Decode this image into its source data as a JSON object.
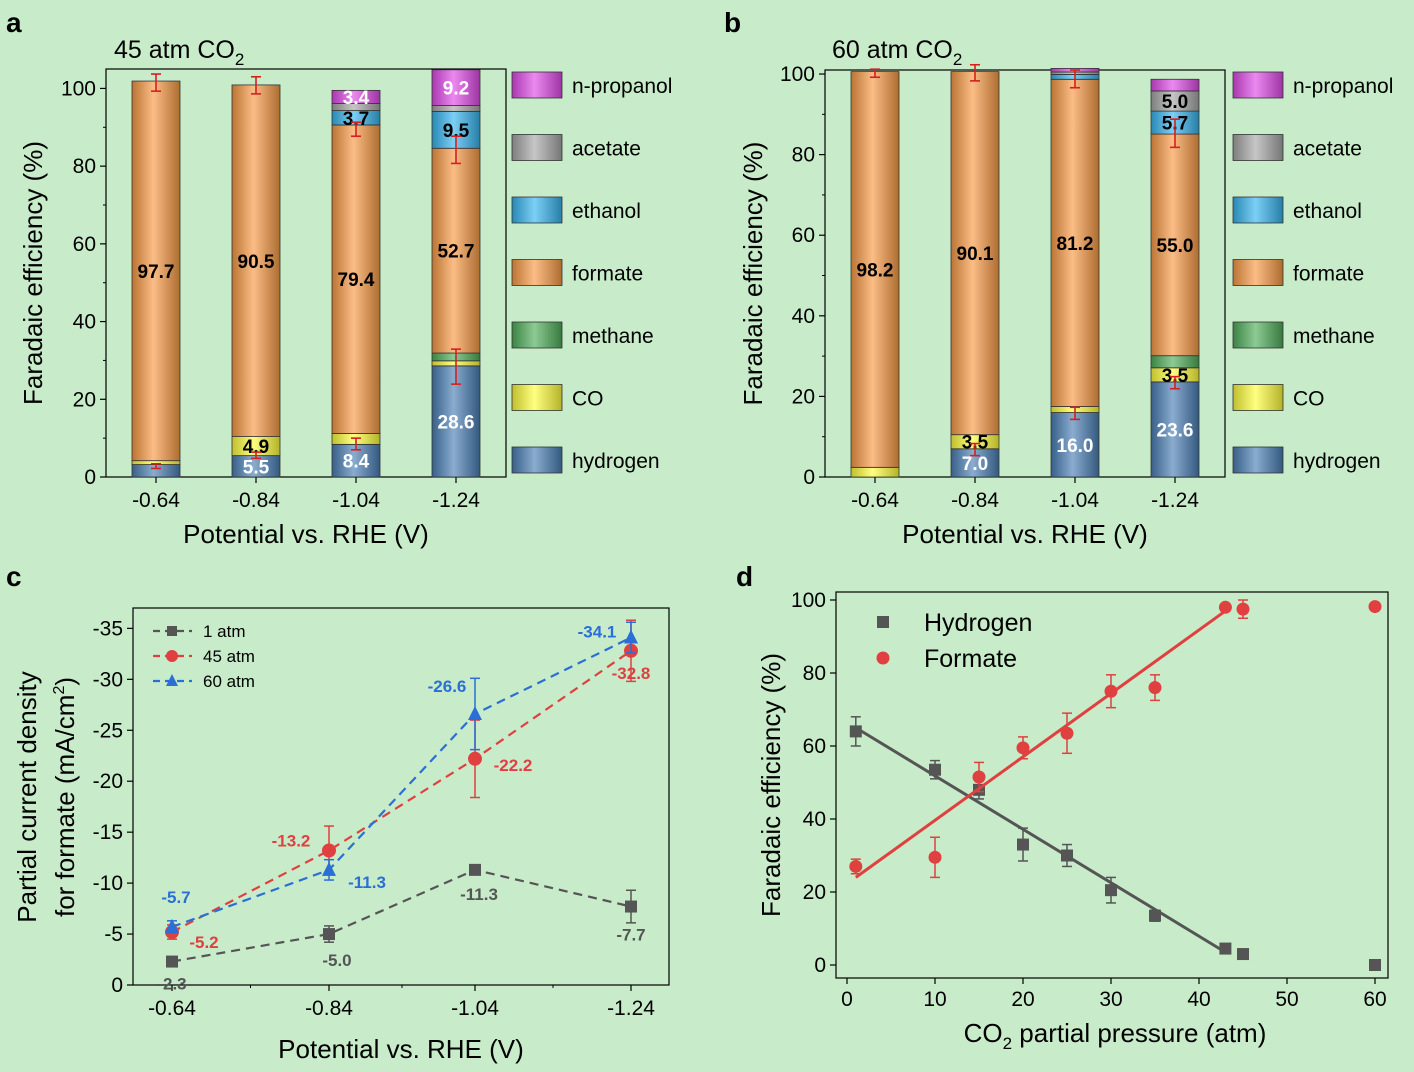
{
  "panels": {
    "a": "a",
    "b": "b",
    "c": "c",
    "d": "d"
  },
  "colors": {
    "hydrogen": "#4a7fb5",
    "CO": "#ffff3c",
    "methane": "#4fae5a",
    "formate": "#f99a45",
    "ethanol": "#36b5f0",
    "acetate": "#a8a8a8",
    "n-propanol": "#e04ae8",
    "err_red": "#d62020",
    "s1": "#555555",
    "s45": "#e04040",
    "s60": "#2b6fd6"
  },
  "chart_data": [
    {
      "id": "a",
      "type": "bar",
      "title": "45 atm CO",
      "title_sub": "2",
      "xlabel": "Potential vs. RHE (V)",
      "ylabel": "Faradaic efficiency (%)",
      "ylim": [
        0,
        105
      ],
      "yticks": [
        "0",
        "20",
        "40",
        "60",
        "80",
        "100"
      ],
      "categories": [
        "-0.64",
        "-0.84",
        "-1.04",
        "-1.24"
      ],
      "series": [
        {
          "name": "hydrogen",
          "values": [
            3.2,
            5.5,
            8.4,
            28.6
          ]
        },
        {
          "name": "CO",
          "values": [
            1.0,
            4.9,
            2.8,
            1.3
          ]
        },
        {
          "name": "methane",
          "values": [
            0.0,
            0.0,
            0.0,
            2.0
          ]
        },
        {
          "name": "formate",
          "values": [
            97.7,
            90.5,
            79.4,
            52.7
          ]
        },
        {
          "name": "ethanol",
          "values": [
            0.0,
            0.0,
            3.7,
            9.5
          ]
        },
        {
          "name": "acetate",
          "values": [
            0.0,
            0.0,
            1.8,
            1.5
          ]
        },
        {
          "name": "n-propanol",
          "values": [
            0.0,
            0.0,
            3.4,
            9.2
          ]
        }
      ],
      "labels": [
        {
          "bar": 0,
          "series": "formate",
          "text": "97.7",
          "color": "#000000"
        },
        {
          "bar": 1,
          "series": "hydrogen",
          "text": "5.5",
          "color": "#ffffff"
        },
        {
          "bar": 1,
          "series": "CO",
          "text": "4.9",
          "color": "#000000"
        },
        {
          "bar": 1,
          "series": "formate",
          "text": "90.5",
          "color": "#000000"
        },
        {
          "bar": 2,
          "series": "hydrogen",
          "text": "8.4",
          "color": "#ffffff"
        },
        {
          "bar": 2,
          "series": "formate",
          "text": "79.4",
          "color": "#000000"
        },
        {
          "bar": 2,
          "series": "ethanol",
          "text": "3.7",
          "color": "#000000"
        },
        {
          "bar": 2,
          "series": "n-propanol",
          "text": "3.4",
          "color": "#ffffff"
        },
        {
          "bar": 3,
          "series": "hydrogen",
          "text": "28.6",
          "color": "#ffffff"
        },
        {
          "bar": 3,
          "series": "formate",
          "text": "52.7",
          "color": "#000000"
        },
        {
          "bar": 3,
          "series": "ethanol",
          "text": "9.5",
          "color": "#000000"
        },
        {
          "bar": 3,
          "series": "n-propanol",
          "text": "9.2",
          "color": "#ffffff"
        }
      ],
      "errors": [
        {
          "bar": 0,
          "value": 2.8,
          "err": 0.6
        },
        {
          "bar": 0,
          "value": 101.5,
          "err": 2.2
        },
        {
          "bar": 1,
          "value": 5.6,
          "err": 0.8
        },
        {
          "bar": 1,
          "value": 100.8,
          "err": 2.2
        },
        {
          "bar": 2,
          "value": 8.5,
          "err": 1.5
        },
        {
          "bar": 2,
          "value": 89.5,
          "err": 1.8
        },
        {
          "bar": 3,
          "value": 28.4,
          "err": 4.5
        },
        {
          "bar": 3,
          "value": 84.2,
          "err": 3.5
        }
      ]
    },
    {
      "id": "b",
      "type": "bar",
      "title": "60 atm CO",
      "title_sub": "2",
      "xlabel": "Potential vs. RHE (V)",
      "ylabel": "Faradaic efficiency (%)",
      "ylim": [
        0,
        101
      ],
      "yticks": [
        "0",
        "20",
        "40",
        "60",
        "80",
        "100"
      ],
      "categories": [
        "-0.64",
        "-0.84",
        "-1.04",
        "-1.24"
      ],
      "series": [
        {
          "name": "hydrogen",
          "values": [
            0.0,
            7.0,
            16.0,
            23.6
          ]
        },
        {
          "name": "CO",
          "values": [
            2.4,
            3.5,
            1.5,
            3.5
          ]
        },
        {
          "name": "methane",
          "values": [
            0.0,
            0.0,
            0.0,
            3.0
          ]
        },
        {
          "name": "formate",
          "values": [
            98.2,
            90.1,
            81.2,
            55.0
          ]
        },
        {
          "name": "ethanol",
          "values": [
            0.0,
            0.0,
            1.2,
            5.7
          ]
        },
        {
          "name": "acetate",
          "values": [
            0.0,
            0.0,
            0.6,
            5.0
          ]
        },
        {
          "name": "n-propanol",
          "values": [
            0.0,
            0.0,
            0.9,
            2.9
          ]
        }
      ],
      "labels": [
        {
          "bar": 0,
          "series": "formate",
          "text": "98.2",
          "color": "#000000"
        },
        {
          "bar": 1,
          "series": "hydrogen",
          "text": "7.0",
          "color": "#ffffff"
        },
        {
          "bar": 1,
          "series": "CO",
          "text": "3.5",
          "color": "#000000"
        },
        {
          "bar": 1,
          "series": "formate",
          "text": "90.1",
          "color": "#000000"
        },
        {
          "bar": 2,
          "series": "hydrogen",
          "text": "16.0",
          "color": "#ffffff"
        },
        {
          "bar": 2,
          "series": "formate",
          "text": "81.2",
          "color": "#000000"
        },
        {
          "bar": 3,
          "series": "hydrogen",
          "text": "23.6",
          "color": "#ffffff"
        },
        {
          "bar": 3,
          "series": "CO",
          "text": "3.5",
          "color": "#000000"
        },
        {
          "bar": 3,
          "series": "formate",
          "text": "55.0",
          "color": "#000000"
        },
        {
          "bar": 3,
          "series": "ethanol",
          "text": "5.7",
          "color": "#000000"
        },
        {
          "bar": 3,
          "series": "acetate",
          "text": "5.0",
          "color": "#000000"
        }
      ],
      "errors": [
        {
          "bar": 0,
          "value": 100.2,
          "err": 1.0
        },
        {
          "bar": 1,
          "value": 6.8,
          "err": 1.5
        },
        {
          "bar": 1,
          "value": 100.3,
          "err": 2.0
        },
        {
          "bar": 2,
          "value": 15.8,
          "err": 1.5
        },
        {
          "bar": 2,
          "value": 98.8,
          "err": 2.2
        },
        {
          "bar": 3,
          "value": 23.4,
          "err": 1.5
        },
        {
          "bar": 3,
          "value": 85.3,
          "err": 3.5
        }
      ]
    },
    {
      "id": "c",
      "type": "line",
      "xlabel": "Potential vs. RHE (V)",
      "ylabel_line1": "Partial current density",
      "ylabel_line2": "for formate (mA/cm",
      "ylabel_sup": "2",
      "ylabel_close": ")",
      "ylim": [
        0,
        -37
      ],
      "yticks": [
        "0",
        "-5",
        "-10",
        "-15",
        "-20",
        "-25",
        "-30",
        "-35"
      ],
      "categories": [
        "-0.64",
        "-0.84",
        "-1.04",
        "-1.24"
      ],
      "series": [
        {
          "name": "1 atm",
          "values": [
            -2.3,
            -5.0,
            -11.3,
            -7.7
          ],
          "errors": [
            0.3,
            0.8,
            0.4,
            1.6
          ],
          "labels": [
            "-2.3",
            "-5.0",
            "-11.3",
            "-7.7"
          ]
        },
        {
          "name": "45 atm",
          "values": [
            -5.2,
            -13.2,
            -22.2,
            -32.8
          ],
          "errors": [
            0.7,
            2.4,
            3.8,
            3.0
          ],
          "labels": [
            "-5.2",
            "-13.2",
            "-22.2",
            "-32.8"
          ]
        },
        {
          "name": "60 atm",
          "values": [
            -5.7,
            -11.3,
            -26.6,
            -34.1
          ],
          "errors": [
            0.6,
            1.0,
            3.5,
            1.5
          ],
          "labels": [
            "-5.7",
            "-11.3",
            "-26.6",
            "-34.1"
          ]
        }
      ]
    },
    {
      "id": "d",
      "type": "scatter",
      "xlabel": "CO",
      "xlabel_sub": "2",
      "xlabel_rest": " partial pressure (atm)",
      "ylabel": "Faradaic efficiency (%)",
      "xlim": [
        0,
        60
      ],
      "ylim": [
        0,
        100
      ],
      "xticks": [
        "0",
        "10",
        "20",
        "30",
        "40",
        "50",
        "60"
      ],
      "yticks": [
        "0",
        "20",
        "40",
        "60",
        "80",
        "100"
      ],
      "series": [
        {
          "name": "Hydrogen",
          "x": [
            1,
            10,
            15,
            20,
            25,
            30,
            35,
            43,
            45,
            60
          ],
          "y": [
            64,
            53.5,
            48,
            33,
            30,
            20.5,
            13.5,
            4.5,
            3,
            0
          ],
          "err": [
            4,
            2.5,
            2.5,
            4.5,
            3,
            3.5,
            1.5,
            0.5,
            0.5,
            0
          ],
          "fit": [
            [
              1,
              65
            ],
            [
              43,
              3.5
            ]
          ]
        },
        {
          "name": "Formate",
          "x": [
            1,
            10,
            15,
            20,
            25,
            30,
            35,
            43,
            45,
            60
          ],
          "y": [
            27,
            29.5,
            51.5,
            59.5,
            63.5,
            75,
            76,
            98,
            97.5,
            98.2
          ],
          "err": [
            2,
            5.5,
            4,
            3,
            5.5,
            4.5,
            3.5,
            0.5,
            2.5,
            0.5
          ],
          "fit": [
            [
              1,
              24
            ],
            [
              43,
              97
            ]
          ]
        }
      ]
    }
  ]
}
